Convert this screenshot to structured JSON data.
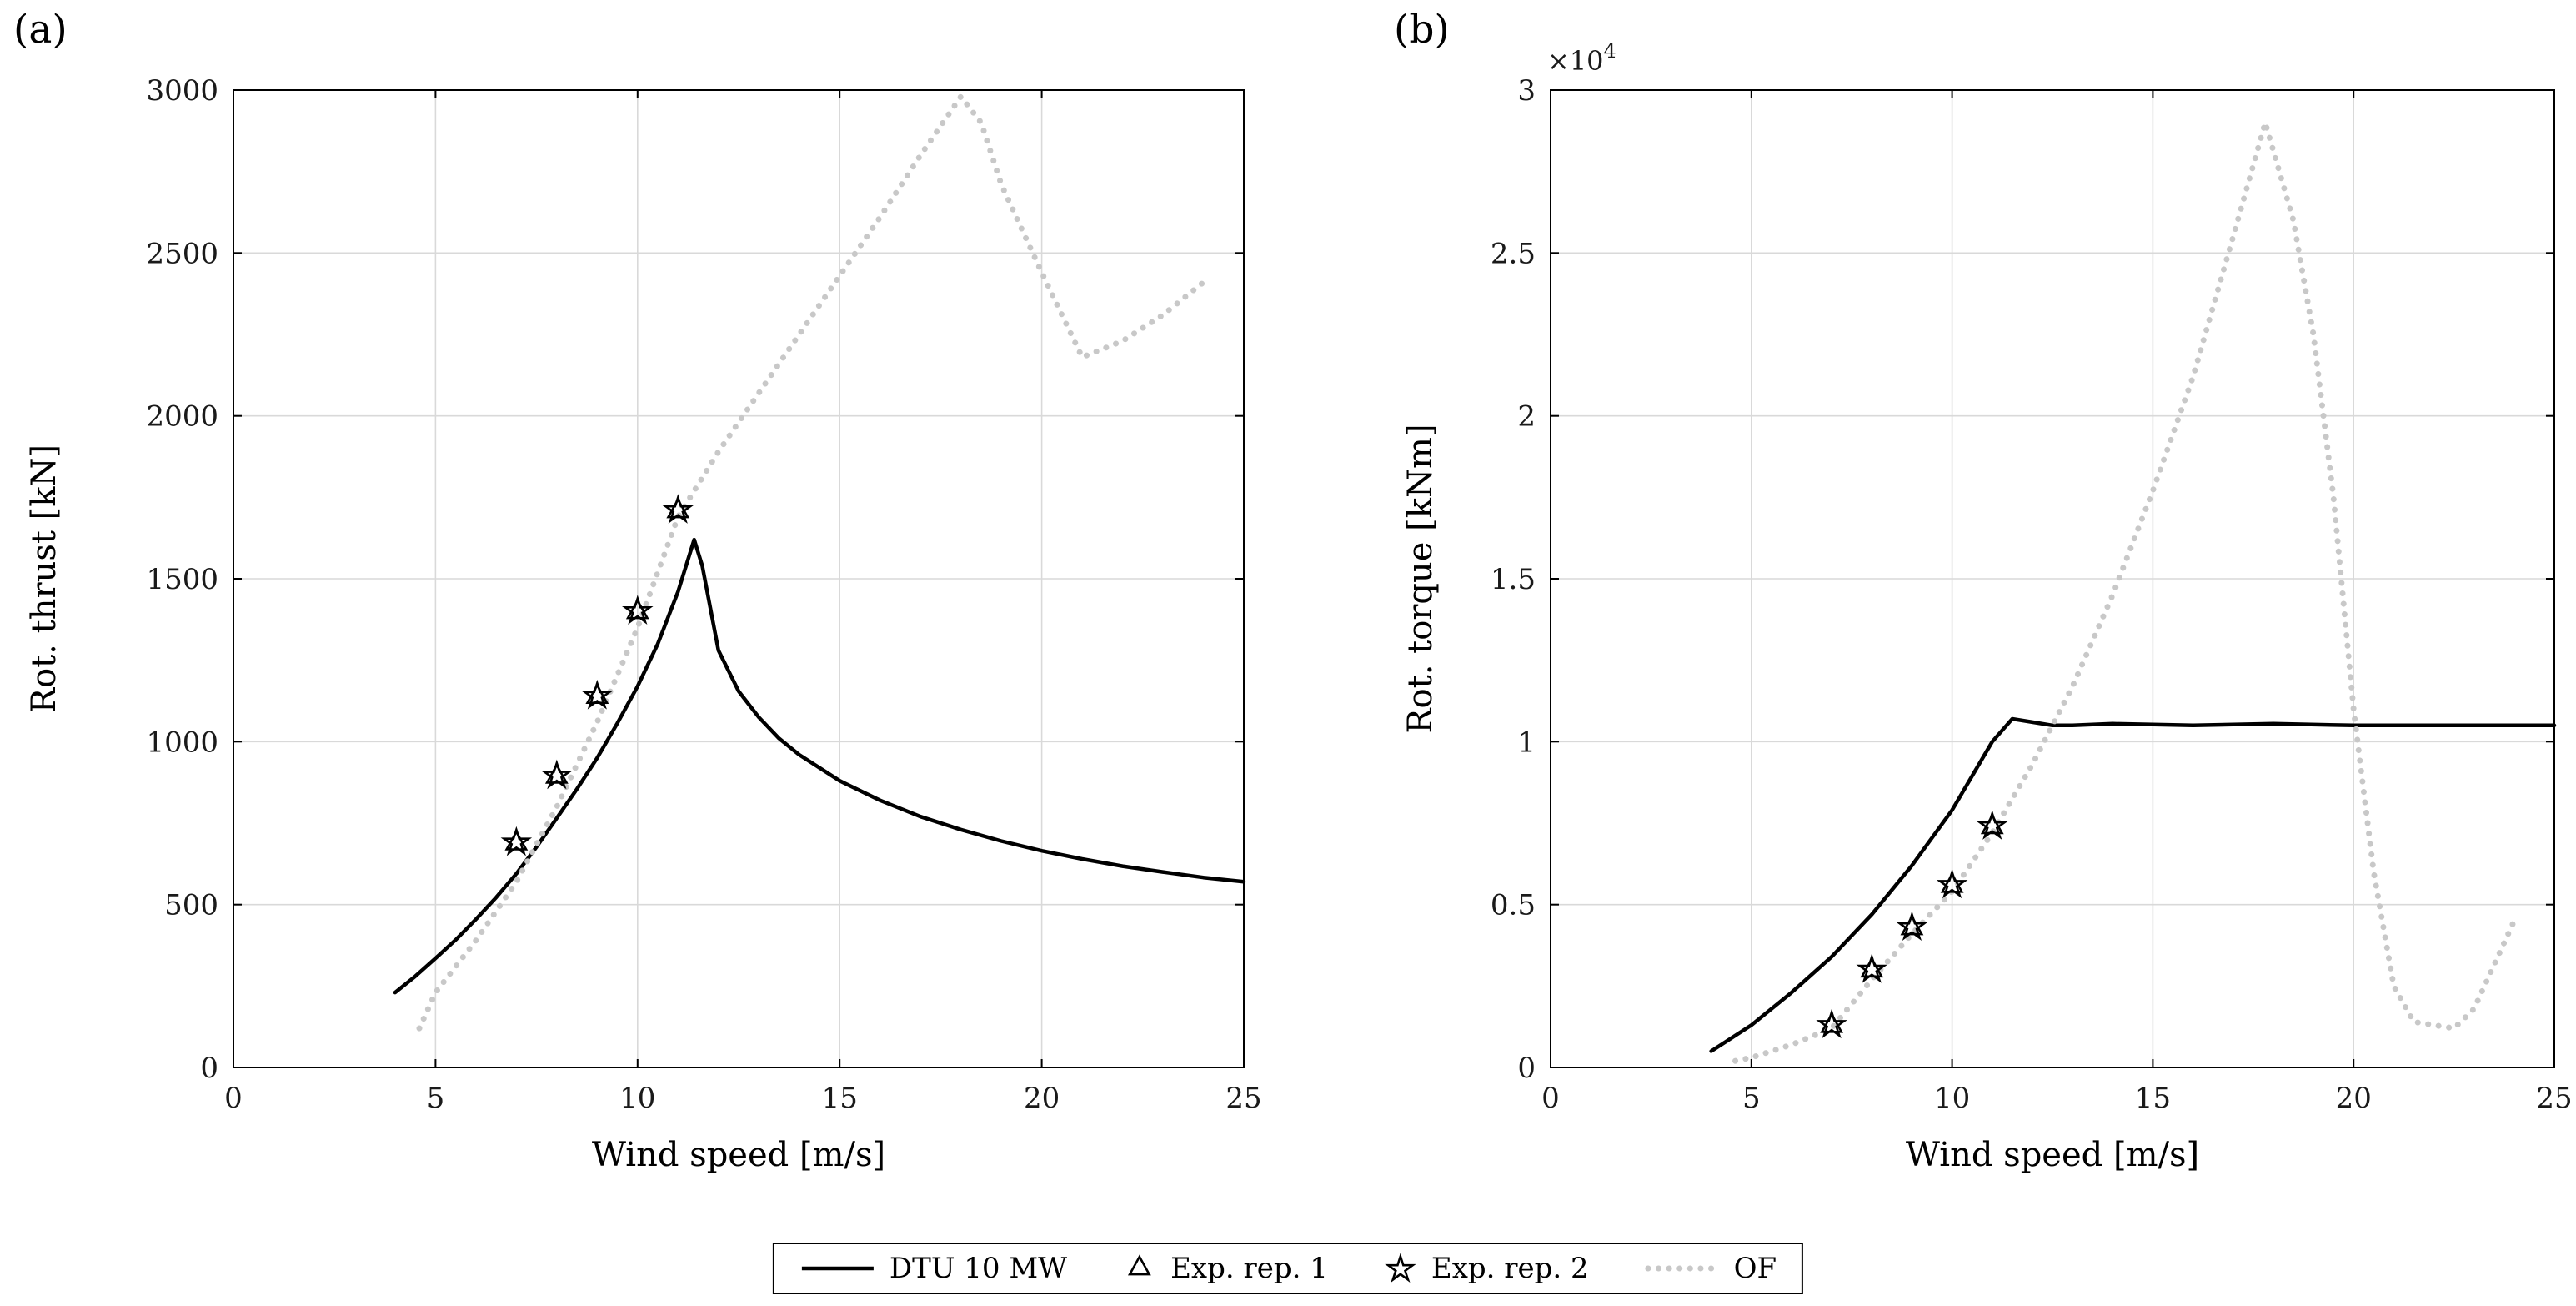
{
  "figure": {
    "background": "#ffffff",
    "panel_labels": {
      "a": "(a)",
      "b": "(b)"
    }
  },
  "colors": {
    "axis": "#000000",
    "tick_text": "#1a1a1a",
    "grid": "#d9d9d9",
    "dtu_line": "#000000",
    "of_line": "#c8c8c8",
    "marker_edge": "#000000"
  },
  "legend": {
    "items": [
      {
        "label": "DTU 10 MW",
        "swatch": "solid-line"
      },
      {
        "label": "Exp. rep. 1",
        "swatch": "triangle"
      },
      {
        "label": "Exp. rep. 2",
        "swatch": "star"
      },
      {
        "label": "OF",
        "swatch": "dotted-line"
      }
    ]
  },
  "chart_data": [
    {
      "id": "rotor-thrust",
      "type": "line",
      "panel": "(a)",
      "xlabel": "Wind speed [m/s]",
      "ylabel": "Rot. thrust [kN]",
      "xlim": [
        0,
        25
      ],
      "ylim": [
        0,
        3000
      ],
      "xticks": [
        0,
        5,
        10,
        15,
        20,
        25
      ],
      "xtick_labels": [
        "0",
        "5",
        "10",
        "15",
        "20",
        "25"
      ],
      "yticks": [
        0,
        500,
        1000,
        1500,
        2000,
        2500,
        3000
      ],
      "ytick_labels": [
        "0",
        "500",
        "1000",
        "1500",
        "2000",
        "2500",
        "3000"
      ],
      "grid": true,
      "series": [
        {
          "name": "DTU 10 MW",
          "style": "solid",
          "color": "#000000",
          "width": 4.5,
          "x": [
            4,
            4.5,
            5,
            5.5,
            6,
            6.5,
            7,
            7.5,
            8,
            8.5,
            9,
            9.5,
            10,
            10.5,
            11,
            11.4,
            11.6,
            12,
            12.5,
            13,
            13.5,
            14,
            15,
            16,
            17,
            18,
            19,
            20,
            21,
            22,
            23,
            24,
            25
          ],
          "y": [
            230,
            280,
            335,
            392,
            455,
            522,
            595,
            677,
            765,
            855,
            950,
            1057,
            1170,
            1300,
            1460,
            1620,
            1540,
            1280,
            1155,
            1075,
            1010,
            960,
            880,
            820,
            770,
            730,
            695,
            665,
            640,
            618,
            600,
            583,
            570
          ]
        },
        {
          "name": "OF",
          "style": "dotted",
          "color": "#c8c8c8",
          "width": 7,
          "x": [
            4.6,
            5,
            6,
            7,
            8,
            9,
            10,
            11,
            12,
            13,
            14,
            15,
            16,
            17,
            18,
            18.5,
            19,
            20,
            21,
            22,
            23,
            24
          ],
          "y": [
            120,
            230,
            390,
            570,
            800,
            1060,
            1350,
            1690,
            1890,
            2070,
            2250,
            2430,
            2610,
            2800,
            2980,
            2900,
            2710,
            2440,
            2180,
            2230,
            2310,
            2410
          ]
        },
        {
          "name": "Exp. rep. 1",
          "style": "markers",
          "marker": "triangle",
          "x": [
            7,
            8,
            9,
            10,
            11
          ],
          "y": [
            690,
            895,
            1140,
            1400,
            1710
          ]
        },
        {
          "name": "Exp. rep. 2",
          "style": "markers",
          "marker": "star",
          "x": [
            7,
            8,
            9,
            10,
            11
          ],
          "y": [
            690,
            895,
            1140,
            1400,
            1710
          ]
        }
      ]
    },
    {
      "id": "rotor-torque",
      "type": "line",
      "panel": "(b)",
      "xlabel": "Wind speed [m/s]",
      "ylabel": "Rot. torque [kNm]",
      "y_exponent_prefix": "×10",
      "y_exponent_power": "4",
      "xlim": [
        0,
        25
      ],
      "ylim": [
        0,
        3
      ],
      "xticks": [
        0,
        5,
        10,
        15,
        20,
        25
      ],
      "xtick_labels": [
        "0",
        "5",
        "10",
        "15",
        "20",
        "25"
      ],
      "yticks": [
        0,
        0.5,
        1,
        1.5,
        2,
        2.5,
        3
      ],
      "ytick_labels": [
        "0",
        "0.5",
        "1",
        "1.5",
        "2",
        "2.5",
        "3"
      ],
      "grid": true,
      "series": [
        {
          "name": "DTU 10 MW",
          "style": "solid",
          "color": "#000000",
          "width": 4.5,
          "x": [
            4,
            5,
            6,
            7,
            8,
            9,
            10,
            11,
            11.5,
            12,
            12.5,
            13,
            14,
            16,
            18,
            20,
            22,
            24,
            25
          ],
          "y": [
            0.05,
            0.13,
            0.23,
            0.34,
            0.47,
            0.62,
            0.79,
            1.0,
            1.07,
            1.06,
            1.05,
            1.05,
            1.055,
            1.05,
            1.055,
            1.05,
            1.05,
            1.05,
            1.05
          ]
        },
        {
          "name": "OF",
          "style": "dotted",
          "color": "#c8c8c8",
          "width": 7,
          "x": [
            4.6,
            5,
            6,
            7,
            8,
            9,
            10,
            11,
            12,
            13,
            14,
            15,
            16,
            17,
            17.8,
            18.5,
            19,
            19.5,
            20,
            20.5,
            21,
            21.5,
            22,
            22.5,
            23,
            24
          ],
          "y": [
            0.02,
            0.03,
            0.07,
            0.12,
            0.27,
            0.41,
            0.54,
            0.72,
            0.93,
            1.17,
            1.45,
            1.77,
            2.12,
            2.55,
            2.9,
            2.6,
            2.25,
            1.75,
            1.1,
            0.6,
            0.25,
            0.14,
            0.13,
            0.12,
            0.18,
            0.45
          ]
        },
        {
          "name": "Exp. rep. 1",
          "style": "markers",
          "marker": "triangle",
          "x": [
            7,
            8,
            9,
            10,
            11
          ],
          "y": [
            0.13,
            0.3,
            0.43,
            0.56,
            0.74
          ]
        },
        {
          "name": "Exp. rep. 2",
          "style": "markers",
          "marker": "star",
          "x": [
            7,
            8,
            9,
            10,
            11
          ],
          "y": [
            0.13,
            0.3,
            0.43,
            0.56,
            0.74
          ]
        }
      ]
    }
  ]
}
